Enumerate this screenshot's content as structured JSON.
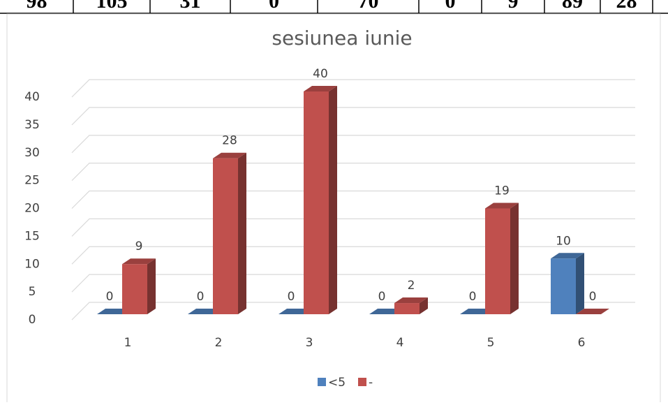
{
  "table": {
    "rows": [
      [
        "98",
        "105",
        "31",
        "0",
        "70",
        "0",
        "9",
        "89",
        "28"
      ]
    ]
  },
  "chart_data": {
    "type": "bar3d",
    "title": "sesiunea iunie",
    "categories": [
      "1",
      "2",
      "3",
      "4",
      "5",
      "6"
    ],
    "series": [
      {
        "name": "<5",
        "color": "#4f81bd",
        "values": [
          0,
          0,
          0,
          0,
          0,
          10
        ]
      },
      {
        "name": "-",
        "color": "#c0504d",
        "values": [
          9,
          28,
          40,
          2,
          19,
          0
        ]
      }
    ],
    "ylim": [
      0,
      40
    ],
    "yticks": [
      0,
      5,
      10,
      15,
      20,
      25,
      30,
      35,
      40
    ],
    "grid": true,
    "legend": "bottom"
  }
}
